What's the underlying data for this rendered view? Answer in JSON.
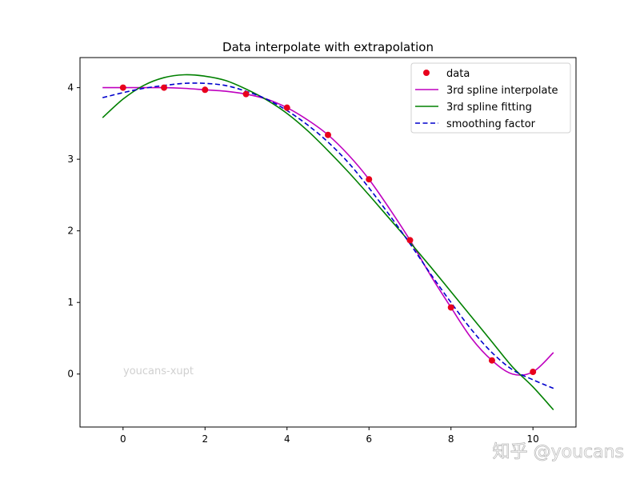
{
  "chart_data": {
    "type": "line",
    "title": "Data interpolate with extrapolation",
    "xlabel": "",
    "ylabel": "",
    "xlim": [
      -1.05,
      11.05
    ],
    "ylim": [
      -0.74,
      4.42
    ],
    "xticks": [
      0,
      2,
      4,
      6,
      8,
      10
    ],
    "yticks": [
      0,
      1,
      2,
      3,
      4
    ],
    "grid": false,
    "legend_position": "top-right",
    "x_curve": [
      -0.5,
      0,
      0.5,
      1,
      1.5,
      2,
      2.5,
      3,
      3.5,
      4,
      4.5,
      5,
      5.5,
      6,
      6.5,
      7,
      7.5,
      8,
      8.5,
      9,
      9.5,
      10,
      10.5
    ],
    "series": [
      {
        "name": "data",
        "kind": "scatter",
        "color": "#e8001c",
        "x": [
          0,
          1,
          2,
          3,
          4,
          5,
          6,
          7,
          8,
          9,
          10
        ],
        "y": [
          4.0,
          4.0,
          3.97,
          3.91,
          3.72,
          3.34,
          2.72,
          1.87,
          0.93,
          0.19,
          0.03
        ]
      },
      {
        "name": "3rd spline interpolate",
        "kind": "line",
        "color": "#bf00bf",
        "dash": false,
        "y": [
          4.0,
          4.0,
          4.0,
          4.0,
          3.99,
          3.97,
          3.95,
          3.91,
          3.84,
          3.72,
          3.55,
          3.34,
          3.06,
          2.72,
          2.31,
          1.87,
          1.38,
          0.93,
          0.5,
          0.19,
          0.0,
          0.03,
          0.3
        ]
      },
      {
        "name": "3rd spline fitting",
        "kind": "line",
        "color": "#008000",
        "dash": false,
        "y": [
          3.58,
          3.84,
          4.03,
          4.14,
          4.18,
          4.16,
          4.1,
          3.98,
          3.83,
          3.64,
          3.4,
          3.12,
          2.82,
          2.5,
          2.17,
          1.84,
          1.5,
          1.15,
          0.8,
          0.45,
          0.1,
          -0.18,
          -0.5
        ]
      },
      {
        "name": "smoothing factor",
        "kind": "line",
        "color": "#0000cc",
        "dash": true,
        "y": [
          3.86,
          3.93,
          3.99,
          4.03,
          4.06,
          4.06,
          4.03,
          3.95,
          3.84,
          3.68,
          3.48,
          3.24,
          2.95,
          2.6,
          2.22,
          1.82,
          1.4,
          1.0,
          0.62,
          0.3,
          0.06,
          -0.08,
          -0.2
        ]
      }
    ],
    "annotations": [
      "youcans-xupt"
    ]
  },
  "watermark": "知乎 @youcans"
}
